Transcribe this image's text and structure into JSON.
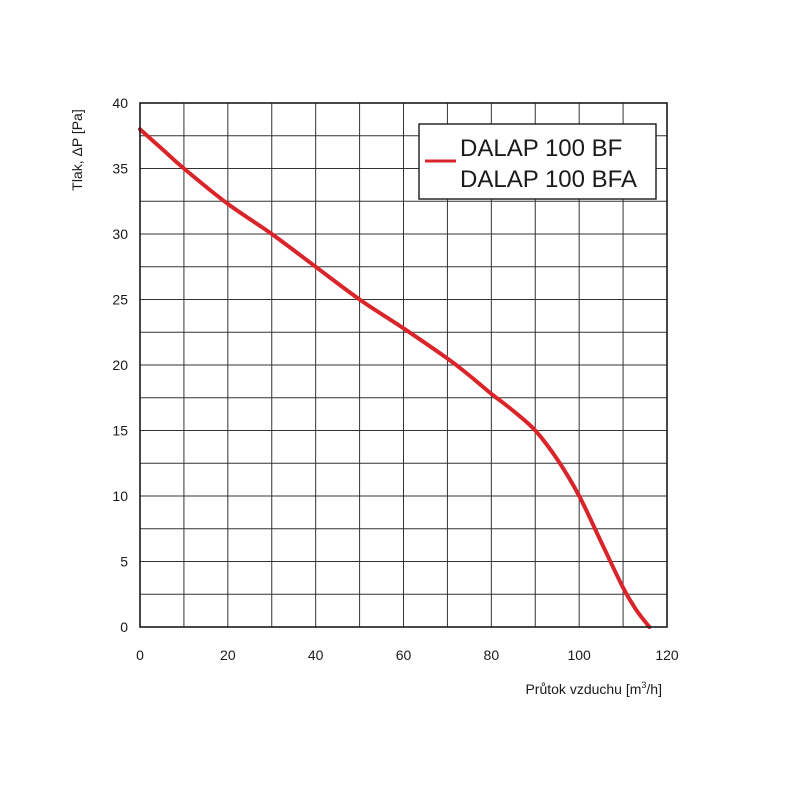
{
  "chart_data": {
    "type": "line",
    "xlabel_main": "Průtok vzduchu [m",
    "xlabel_sup": "3",
    "xlabel_tail": "/h]",
    "ylabel": "Tlak, ΔP [Pa]",
    "xlim": [
      0,
      120
    ],
    "ylim": [
      0,
      40
    ],
    "x_ticks": [
      "0",
      "20",
      "40",
      "60",
      "80",
      "100",
      "120"
    ],
    "y_ticks": [
      "0",
      "5",
      "10",
      "15",
      "20",
      "25",
      "30",
      "35",
      "40"
    ],
    "grid": true,
    "legend_position": "top-right",
    "legend_entries": [
      "DALAP 100 BF",
      "DALAP 100 BFA"
    ],
    "series": [
      {
        "color": "#d9252a",
        "x": [
          0,
          5,
          10,
          20,
          30,
          40,
          50,
          60,
          70,
          75,
          80,
          85,
          90,
          95,
          100,
          105,
          110,
          113,
          116
        ],
        "y": [
          38,
          36.5,
          35,
          32.3,
          30,
          27.5,
          25,
          22.8,
          20.5,
          19.2,
          17.8,
          16.5,
          15,
          12.8,
          10,
          6.5,
          3,
          1.3,
          0
        ]
      }
    ]
  }
}
